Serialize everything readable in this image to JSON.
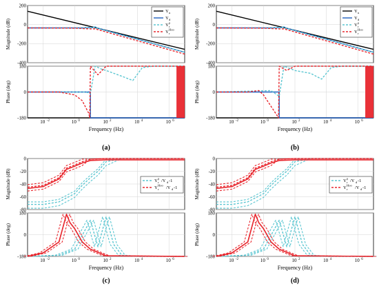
{
  "colors": {
    "black": "#000000",
    "blue": "#1f5fbf",
    "cyan": "#5bc6d1",
    "red": "#e8262d",
    "grid": "#d3d3d3"
  },
  "axes_text": {
    "magnitude_label": "Magnitude (dB)",
    "phase_label": "Phase (deg)",
    "frequency_label": "Frequency  (Hz)",
    "mag_ticks_top": [
      "200",
      "0",
      "-200",
      "-400"
    ],
    "mag_ticks_bottom": [
      "0",
      "-20",
      "-40",
      "-60",
      "-80"
    ],
    "phase_ticks": [
      "180",
      "0",
      "-180"
    ],
    "freq_ticks": [
      "10",
      "10",
      "10",
      "10",
      "10"
    ],
    "freq_exps": [
      "-2",
      "0",
      "2",
      "4",
      "6"
    ]
  },
  "panels": [
    {
      "caption": "(a)",
      "legend": [
        {
          "label": "Y",
          "sub": "u",
          "sup": "",
          "style": "solid",
          "color": "black"
        },
        {
          "label": "Y",
          "sub": "d",
          "sup": "",
          "style": "solid",
          "color": "blue"
        },
        {
          "label": "Y",
          "sub": "r",
          "sup": "μ",
          "style": "dashed",
          "color": "cyan"
        },
        {
          "label": "Y",
          "sub": "r",
          "sup": "Hoo",
          "style": "dashed",
          "color": "red"
        }
      ]
    },
    {
      "caption": "(b)",
      "legend": [
        {
          "label": "Y",
          "sub": "u",
          "sup": "",
          "style": "solid",
          "color": "black"
        },
        {
          "label": "Y",
          "sub": "d",
          "sup": "",
          "style": "solid",
          "color": "blue"
        },
        {
          "label": "Y",
          "sub": "r",
          "sup": "μ",
          "style": "dashed",
          "color": "cyan"
        },
        {
          "label": "Y",
          "sub": "r",
          "sup": "Hoo",
          "style": "dashed",
          "color": "red"
        }
      ]
    },
    {
      "caption": "(c)",
      "legend": [
        {
          "label": "Y",
          "sub": "r",
          "sup": "μ",
          "tail": "/Y",
          "tailsub": "d",
          "end": "-1",
          "style": "dashed",
          "color": "cyan"
        },
        {
          "label": "Y",
          "sub": "r",
          "sup": "Hoo",
          "tail": "/Y",
          "tailsub": "d",
          "end": "-1",
          "style": "dashed",
          "color": "red"
        }
      ]
    },
    {
      "caption": "(d)",
      "legend": [
        {
          "label": "Y",
          "sub": "r",
          "sup": "μ",
          "tail": "/Y",
          "tailsub": "d",
          "end": "-1",
          "style": "dashed",
          "color": "cyan"
        },
        {
          "label": "Y",
          "sub": "r",
          "sup": "Hoo",
          "tail": "/Y",
          "tailsub": "d",
          "end": "-1",
          "style": "dashed",
          "color": "red"
        }
      ]
    }
  ],
  "chart_data": [
    {
      "type": "line",
      "panel": "a",
      "xscale": "log",
      "xlim": [
        0.001,
        10000000
      ],
      "magnitude": {
        "ylim": [
          -400,
          200
        ],
        "series": [
          {
            "name": "Y_u",
            "x": [
              0.001,
              10000000
            ],
            "y": [
              140,
              -260
            ]
          },
          {
            "name": "Y_d",
            "x": [
              0.001,
              3,
              15,
              20,
              30,
              10000000
            ],
            "y": [
              -35,
              -35,
              -30,
              -25,
              -38,
              -290
            ]
          },
          {
            "name": "Y_r^μ",
            "x": [
              0.001,
              3,
              15,
              20,
              30,
              10000000
            ],
            "y": [
              -35,
              -35,
              -30,
              -22,
              -40,
              -290
            ]
          },
          {
            "name": "Y_r^Hoo",
            "x": [
              0.001,
              1,
              10,
              20,
              10000000
            ],
            "y": [
              -35,
              -38,
              -45,
              -45,
              -310
            ]
          }
        ]
      },
      "phase": {
        "ylim": [
          -180,
          180
        ],
        "series": [
          {
            "name": "Y_u",
            "x": [
              0.001,
              10000000
            ],
            "y": [
              -180,
              -180
            ]
          },
          {
            "name": "Y_d",
            "x": [
              0.001,
              10,
              10.01,
              15,
              15.01,
              10000000
            ],
            "y": [
              0,
              0,
              -180,
              -180,
              -180,
              -180
            ]
          },
          {
            "name": "Y_r^μ",
            "x": [
              0.001,
              5,
              10,
              20,
              50,
              100,
              1000,
              5000,
              20000,
              100000,
              10000000
            ],
            "y": [
              0,
              0,
              -10,
              180,
              160,
              150,
              110,
              80,
              170,
              180,
              180
            ]
          },
          {
            "name": "Y_r^Hoo",
            "x": [
              0.001,
              0.1,
              1,
              3,
              8,
              9,
              10,
              30,
              100,
              1000,
              1000000,
              10000000
            ],
            "y": [
              0,
              0,
              -20,
              -60,
              -150,
              -180,
              180,
              120,
              180,
              180,
              180,
              180
            ]
          }
        ]
      }
    },
    {
      "type": "line",
      "panel": "b",
      "xscale": "log",
      "xlim": [
        0.001,
        10000000
      ],
      "magnitude": {
        "ylim": [
          -400,
          200
        ],
        "series": [
          {
            "name": "Y_u",
            "x": [
              0.001,
              10000000
            ],
            "y": [
              140,
              -260
            ]
          },
          {
            "name": "Y_d",
            "x": [
              0.001,
              3,
              15,
              20,
              30,
              10000000
            ],
            "y": [
              -35,
              -35,
              -30,
              -25,
              -38,
              -290
            ]
          },
          {
            "name": "Y_r^μ",
            "x": [
              0.001,
              3,
              15,
              20,
              30,
              10000000
            ],
            "y": [
              -35,
              -35,
              -30,
              -22,
              -40,
              -290
            ]
          },
          {
            "name": "Y_r^Hoo",
            "x": [
              0.001,
              1,
              10,
              20,
              10000000
            ],
            "y": [
              -35,
              -38,
              -45,
              -45,
              -310
            ]
          }
        ]
      },
      "phase": {
        "ylim": [
          -180,
          180
        ],
        "series": [
          {
            "name": "Y_u",
            "x": [
              0.001,
              10000000
            ],
            "y": [
              -180,
              -180
            ]
          },
          {
            "name": "Y_d",
            "x": [
              0.001,
              10,
              10.01,
              10000000
            ],
            "y": [
              0,
              0,
              -180,
              -180
            ]
          },
          {
            "name": "Y_r^μ",
            "x": [
              0.001,
              3,
              10,
              20,
              100,
              1000,
              5000,
              20000,
              100000,
              10000000
            ],
            "y": [
              0,
              10,
              -30,
              180,
              150,
              130,
              90,
              170,
              180,
              180
            ]
          },
          {
            "name": "Y_r^Hoo",
            "x": [
              0.001,
              0.1,
              0.5,
              1,
              3,
              8,
              9,
              10,
              30,
              100,
              10000000
            ],
            "y": [
              0,
              0,
              10,
              -20,
              -100,
              -170,
              -180,
              180,
              150,
              180,
              180
            ]
          }
        ]
      }
    },
    {
      "type": "line",
      "panel": "c",
      "xscale": "log",
      "xlim": [
        0.001,
        10000000
      ],
      "magnitude": {
        "ylim": [
          -80,
          0
        ],
        "series": [
          {
            "name": "Y_r^μ/Y_d-1",
            "x": [
              0.001,
              0.01,
              0.1,
              1,
              3,
              10,
              30,
              100,
              1000,
              10000000
            ],
            "y": [
              -72,
              -72,
              -68,
              -55,
              -42,
              -30,
              -20,
              -5,
              0,
              0
            ]
          },
          {
            "name": "Y_r^Hoo/Y_d-1",
            "x": [
              0.001,
              0.01,
              0.1,
              0.3,
              1,
              3,
              10,
              100,
              10000000
            ],
            "y": [
              -45,
              -42,
              -30,
              -15,
              -10,
              -5,
              -1,
              0,
              0
            ]
          }
        ]
      },
      "phase": {
        "ylim": [
          -180,
          180
        ],
        "series": [
          {
            "name": "Y_r^μ/Y_d-1",
            "x": [
              0.001,
              0.1,
              1,
              10,
              30,
              100,
              300,
              1000,
              10000,
              10000000
            ],
            "y": [
              -180,
              -170,
              -120,
              120,
              -100,
              150,
              -80,
              -170,
              -180,
              -180
            ]
          },
          {
            "name": "Y_r^Hoo/Y_d-1",
            "x": [
              0.001,
              0.01,
              0.1,
              0.3,
              0.5,
              1,
              3,
              10,
              100,
              10000000
            ],
            "y": [
              -180,
              -150,
              -60,
              170,
              100,
              50,
              -60,
              -120,
              -175,
              -180
            ]
          }
        ]
      }
    },
    {
      "type": "line",
      "panel": "d",
      "xscale": "log",
      "xlim": [
        0.001,
        10000000
      ],
      "magnitude": {
        "ylim": [
          -80,
          0
        ],
        "series": [
          {
            "name": "Y_r^μ/Y_d-1",
            "x": [
              0.001,
              0.01,
              0.1,
              1,
              3,
              10,
              30,
              100,
              1000,
              10000000
            ],
            "y": [
              -72,
              -72,
              -68,
              -55,
              -42,
              -30,
              -20,
              -5,
              0,
              0
            ]
          },
          {
            "name": "Y_r^Hoo/Y_d-1",
            "x": [
              0.001,
              0.01,
              0.1,
              0.3,
              1,
              3,
              10,
              100,
              10000000
            ],
            "y": [
              -45,
              -42,
              -30,
              -15,
              -10,
              -5,
              -1,
              0,
              0
            ]
          }
        ]
      },
      "phase": {
        "ylim": [
          -180,
          180
        ],
        "series": [
          {
            "name": "Y_r^μ/Y_d-1",
            "x": [
              0.001,
              0.1,
              1,
              10,
              30,
              100,
              300,
              1000,
              10000,
              10000000
            ],
            "y": [
              -180,
              -170,
              -120,
              120,
              -100,
              150,
              -80,
              -170,
              -180,
              -180
            ]
          },
          {
            "name": "Y_r^Hoo/Y_d-1",
            "x": [
              0.001,
              0.01,
              0.1,
              0.3,
              0.5,
              1,
              3,
              10,
              100,
              10000000
            ],
            "y": [
              -180,
              -150,
              -60,
              170,
              100,
              50,
              -60,
              -120,
              -175,
              -180
            ]
          }
        ]
      }
    }
  ]
}
